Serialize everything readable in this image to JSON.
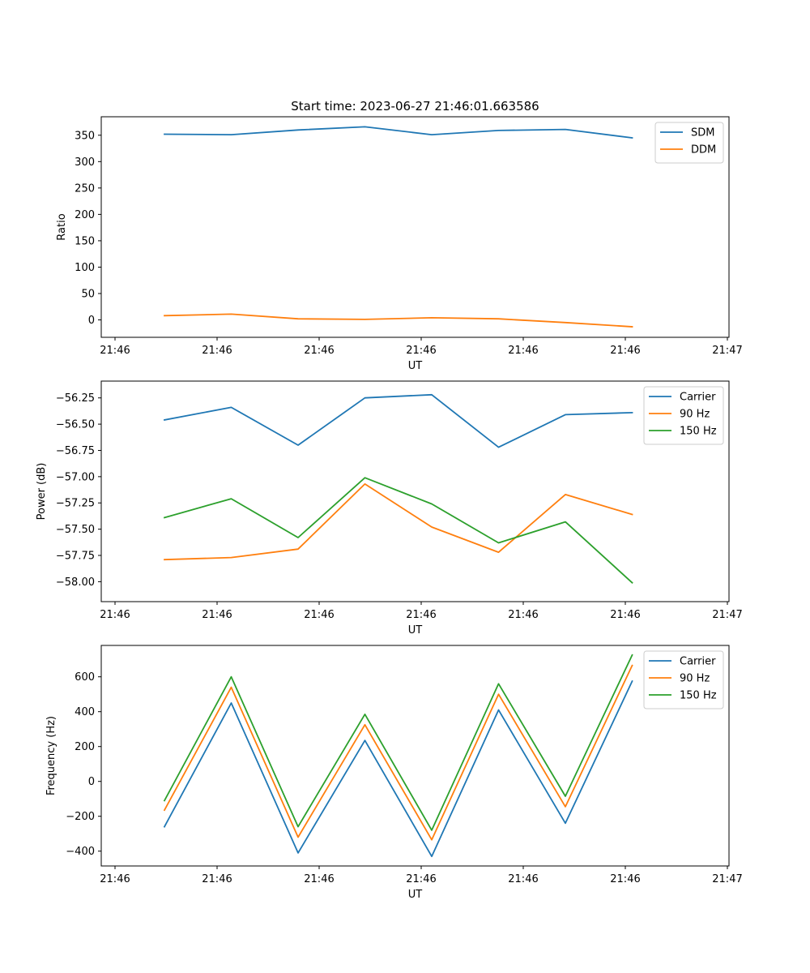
{
  "figure": {
    "title": "Start time: 2023-06-27 21:46:01.663586"
  },
  "colors": {
    "blue": "#1f77b4",
    "orange": "#ff7f0e",
    "green": "#2ca02c"
  },
  "chart_data": [
    {
      "type": "line",
      "title": "Start time: 2023-06-27 21:46:01.663586",
      "xlabel": "UT",
      "ylabel": "Ratio",
      "xticks": [
        "21:46",
        "21:46",
        "21:46",
        "21:46",
        "21:46",
        "21:46",
        "21:47"
      ],
      "xlim": [
        -0.75,
        8.6
      ],
      "ylim": [
        -33,
        385
      ],
      "yticks": [
        0,
        50,
        100,
        150,
        200,
        250,
        300,
        350
      ],
      "x": [
        0,
        1,
        2,
        3,
        4,
        5,
        6,
        7
      ],
      "legend": "top-right",
      "grid": false,
      "series": [
        {
          "name": "SDM",
          "color": "#1f77b4",
          "values": [
            352,
            351,
            360,
            366,
            351,
            359,
            361,
            345
          ]
        },
        {
          "name": "DDM",
          "color": "#ff7f0e",
          "values": [
            8,
            11,
            2,
            1,
            4,
            2,
            -5,
            -13
          ]
        }
      ]
    },
    {
      "type": "line",
      "xlabel": "UT",
      "ylabel": "Power (dB)",
      "xticks": [
        "21:46",
        "21:46",
        "21:46",
        "21:46",
        "21:46",
        "21:46",
        "21:47"
      ],
      "xlim": [
        -0.75,
        8.6
      ],
      "ylim": [
        -58.19,
        -56.09
      ],
      "yticks": [
        -58.0,
        -57.75,
        -57.5,
        -57.25,
        -57.0,
        -56.75,
        -56.5,
        -56.25
      ],
      "ytick_labels": [
        "−58.00",
        "−57.75",
        "−57.50",
        "−57.25",
        "−57.00",
        "−56.75",
        "−56.50",
        "−56.25"
      ],
      "x": [
        0,
        1,
        2,
        3,
        4,
        5,
        6,
        7
      ],
      "legend": "top-right",
      "grid": false,
      "series": [
        {
          "name": "Carrier",
          "color": "#1f77b4",
          "values": [
            -56.46,
            -56.34,
            -56.7,
            -56.25,
            -56.22,
            -56.72,
            -56.41,
            -56.39
          ]
        },
        {
          "name": "90 Hz",
          "color": "#ff7f0e",
          "values": [
            -57.79,
            -57.77,
            -57.69,
            -57.07,
            -57.48,
            -57.72,
            -57.17,
            -57.36
          ]
        },
        {
          "name": "150 Hz",
          "color": "#2ca02c",
          "values": [
            -57.39,
            -57.21,
            -57.58,
            -57.01,
            -57.26,
            -57.63,
            -57.43,
            -58.01
          ]
        }
      ]
    },
    {
      "type": "line",
      "xlabel": "UT",
      "ylabel": "Frequency (Hz)",
      "xticks": [
        "21:46",
        "21:46",
        "21:46",
        "21:46",
        "21:46",
        "21:46",
        "21:47"
      ],
      "xlim": [
        -0.75,
        8.6
      ],
      "ylim": [
        -485,
        780
      ],
      "yticks": [
        -400,
        -200,
        0,
        200,
        400,
        600
      ],
      "ytick_labels": [
        "−400",
        "−200",
        "0",
        "200",
        "400",
        "600"
      ],
      "x": [
        0,
        1,
        2,
        3,
        4,
        5,
        6,
        7
      ],
      "legend": "top-right",
      "grid": false,
      "series": [
        {
          "name": "Carrier",
          "color": "#1f77b4",
          "values": [
            -260,
            450,
            -410,
            235,
            -430,
            410,
            -240,
            575
          ]
        },
        {
          "name": "90 Hz",
          "color": "#ff7f0e",
          "values": [
            -165,
            540,
            -320,
            325,
            -335,
            500,
            -145,
            665
          ]
        },
        {
          "name": "150 Hz",
          "color": "#2ca02c",
          "values": [
            -110,
            600,
            -260,
            385,
            -280,
            560,
            -85,
            725
          ]
        }
      ]
    }
  ]
}
